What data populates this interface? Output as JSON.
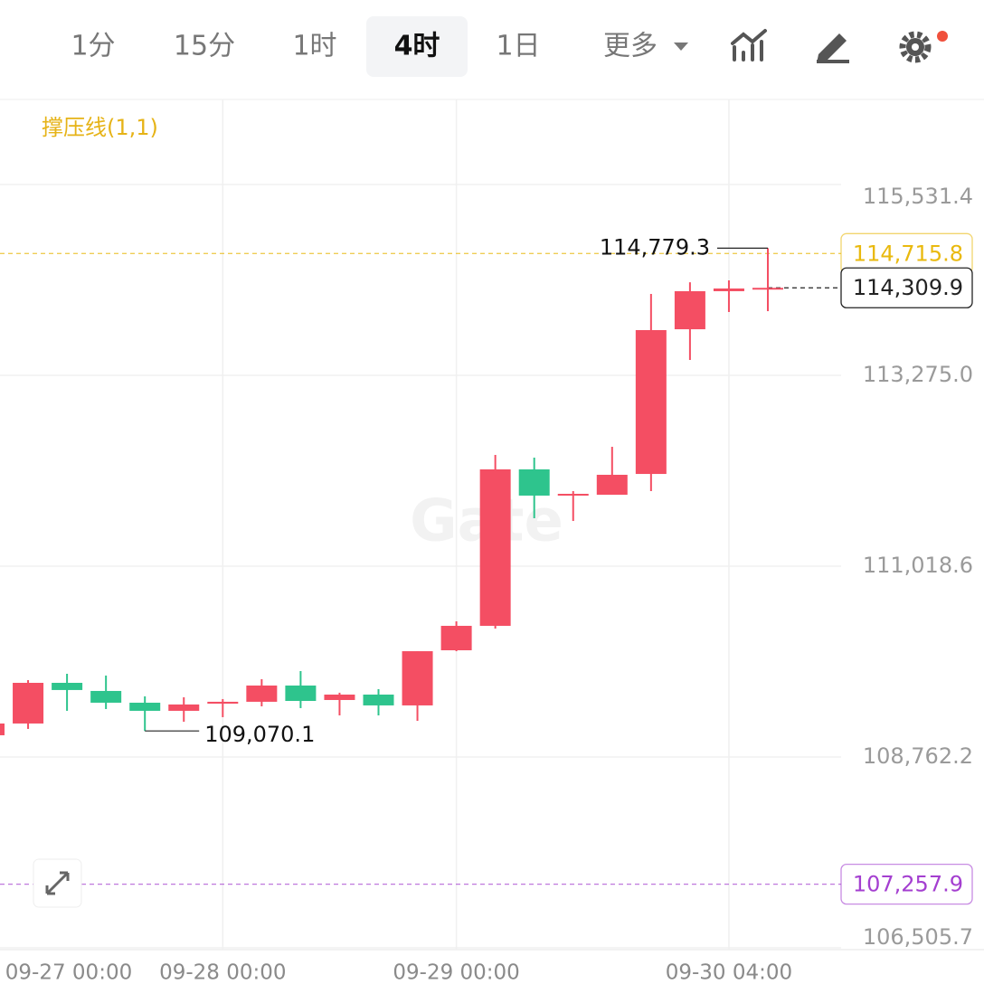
{
  "toolbar": {
    "tabs": [
      "1分",
      "15分",
      "1时",
      "4时",
      "1日",
      "更多"
    ],
    "active": "4时"
  },
  "chart_data": {
    "type": "candlestick",
    "indicator": "撑压线(1,1)",
    "watermark": "Gate",
    "categories": [
      "09-27 00:00",
      null,
      null,
      null,
      null,
      null,
      "09-28 00:00",
      null,
      null,
      null,
      null,
      null,
      "09-29 00:00",
      null,
      null,
      null,
      null,
      null,
      null,
      "09-30 04:00",
      null
    ],
    "open": [
      109019,
      109158,
      109639,
      109543,
      109404,
      109308,
      109393,
      109415,
      109607,
      109436,
      109500,
      109372,
      110024,
      110313,
      112163,
      111853,
      111863,
      112109,
      113820,
      114270,
      114291
    ],
    "high": [
      109158,
      109671,
      109746,
      109725,
      109479,
      109468,
      109447,
      109682,
      109778,
      109522,
      109564,
      110013,
      110366,
      112334,
      112302,
      111906,
      112430,
      114238,
      114376,
      114398,
      114779.3
    ],
    "low": [
      109019,
      109094,
      109308,
      109329,
      109070.1,
      109179,
      109233,
      109361,
      109340,
      109254,
      109254,
      109190,
      110013,
      110281,
      111585,
      111553,
      111863,
      111906,
      113457,
      114024,
      114034
    ],
    "close": [
      109158,
      109639,
      109554,
      109404,
      109308,
      109383,
      109415,
      109607,
      109425,
      109500,
      109372,
      110013,
      110313,
      112163,
      111853,
      111874,
      112099,
      113810,
      114270,
      114302,
      114309.9
    ],
    "up_color": "#f44e63",
    "down_color": "#2ec48d",
    "ylim": [
      106484,
      116537
    ],
    "yticks": [
      {
        "value": 115531.4,
        "label": "115,531.4"
      },
      {
        "value": 113275.0,
        "label": "113,275.0"
      },
      {
        "value": 111018.6,
        "label": "111,018.6"
      },
      {
        "value": 108762.2,
        "label": "108,762.2"
      },
      {
        "value": 106505.7,
        "label": "106,505.7"
      }
    ],
    "grid": true,
    "annotations": [
      {
        "value": 114779.3,
        "label": "114,779.3"
      },
      {
        "value": 109070.1,
        "label": "109,070.1"
      }
    ],
    "price_lines": [
      {
        "value": 114715.8,
        "label": "114,715.8",
        "color": "#e9b90e"
      },
      {
        "value": 114309.9,
        "label": "114,309.9",
        "color": "#222222"
      },
      {
        "value": 107257.9,
        "label": "107,257.9",
        "color": "#a43fd0"
      }
    ]
  }
}
